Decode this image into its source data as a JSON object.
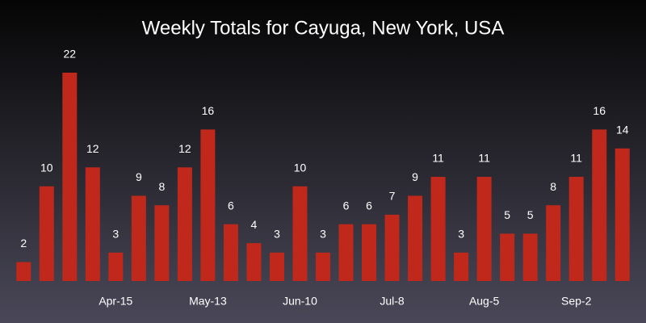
{
  "chart_data": {
    "type": "bar",
    "title": "Weekly Totals for Cayuga, New York, USA",
    "categories": [
      null,
      null,
      null,
      null,
      "Apr-15",
      null,
      null,
      null,
      "May-13",
      null,
      null,
      null,
      "Jun-10",
      null,
      null,
      null,
      "Jul-8",
      null,
      null,
      null,
      "Aug-5",
      null,
      null,
      null,
      "Sep-2",
      null,
      null
    ],
    "values": [
      2,
      10,
      22,
      12,
      3,
      9,
      8,
      12,
      16,
      6,
      4,
      3,
      10,
      3,
      6,
      6,
      7,
      9,
      11,
      3,
      11,
      5,
      5,
      8,
      11,
      16,
      14
    ],
    "color": "#c0281c"
  }
}
